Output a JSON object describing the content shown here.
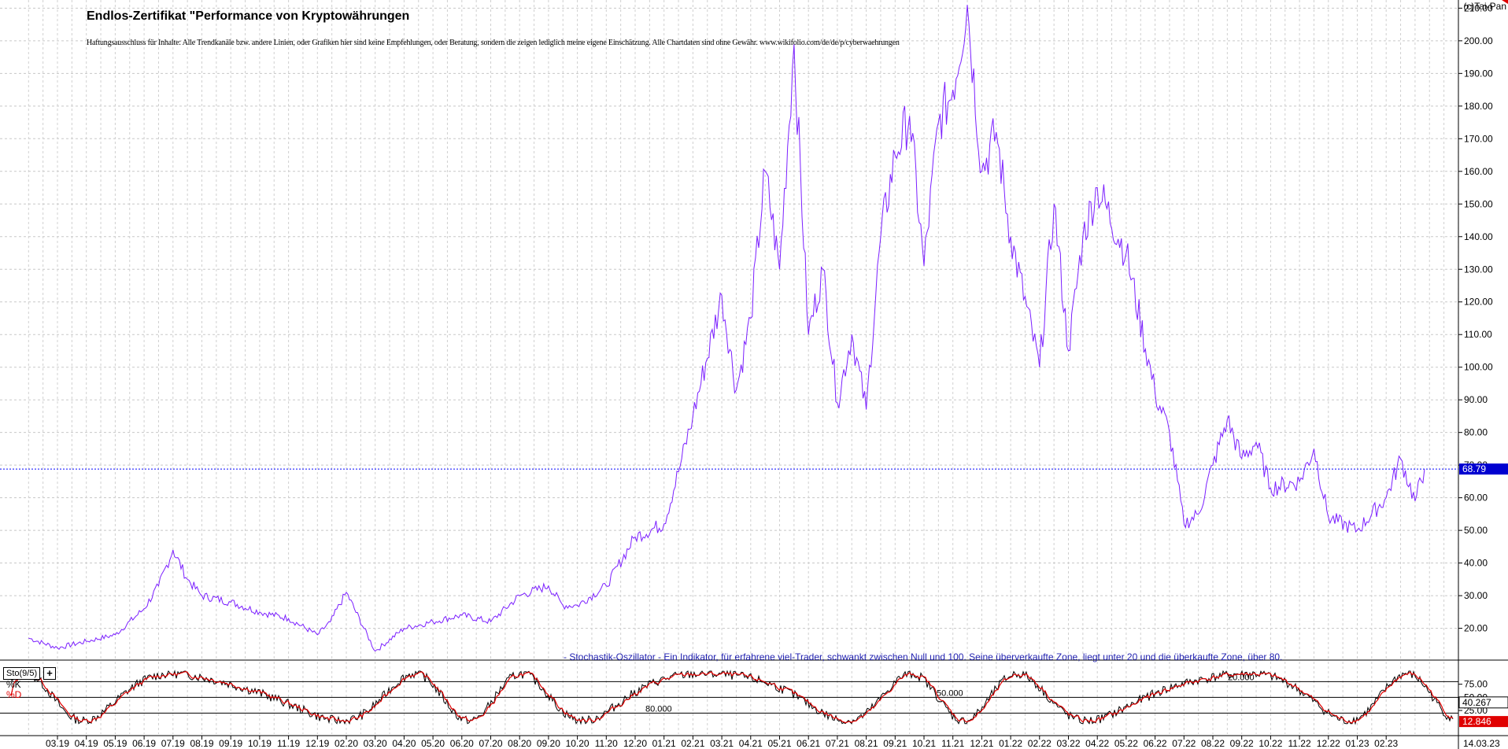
{
  "header": {
    "title": "Endlos-Zertifikat \"Performance von Kryptowährungen",
    "disclaimer": "Haftungsausschluss für Inhalte: Alle Trendkanäle bzw. andere Linien, oder Grafiken hier sind keine Empfehlungen, oder Beratung, sondern die zeigen lediglich meine eigene Einschätzung. Alle Chartdaten sind ohne Gewähr. www.wikifolio.com/de/de/p/cyberwaehrungen",
    "copyright": "(c)Tai-Pan"
  },
  "indicator": {
    "description": "- Stochastik-Oszillator - Ein Indikator, für erfahrene viel-Trader, schwankt zwischen Null und 100. Seine überverkaufte Zone, liegt unter 20 und die überkaufte Zone, über 80.",
    "box_label": "Sto(9/5)",
    "plus_label": "+",
    "k_label": "%K",
    "d_label": "%D",
    "level_labels": [
      "80.000",
      "50.000",
      "20.000"
    ]
  },
  "chart_data": [
    {
      "type": "line",
      "name": "price",
      "y_axis": {
        "ticks": [
          20,
          30,
          40,
          50,
          60,
          70,
          80,
          90,
          100,
          110,
          120,
          130,
          140,
          150,
          160,
          170,
          180,
          190,
          200,
          210
        ],
        "tick_labels": [
          "20.00",
          "30.00",
          "40.00",
          "50.00",
          "60.00",
          "70.00",
          "80.00",
          "90.00",
          "100.00",
          "110.00",
          "120.00",
          "130.00",
          "140.00",
          "150.00",
          "160.00",
          "170.00",
          "180.00",
          "190.00",
          "200.00",
          "210.00"
        ],
        "ylim": [
          10.5,
          212.5
        ]
      },
      "x_axis": {
        "tick_labels": [
          "03.19",
          "04.19",
          "05.19",
          "06.19",
          "07.19",
          "08.19",
          "09.19",
          "10.19",
          "11.19",
          "12.19",
          "02.20",
          "03.20",
          "04.20",
          "05.20",
          "06.20",
          "07.20",
          "08.20",
          "09.20",
          "10.20",
          "11.20",
          "12.20",
          "01.21",
          "02.21",
          "03.21",
          "04.21",
          "05.21",
          "06.21",
          "07.21",
          "08.21",
          "09.21",
          "10.21",
          "11.21",
          "12.21",
          "01.22",
          "02.22",
          "03.22",
          "04.22",
          "05.22",
          "06.22",
          "07.22",
          "08.22",
          "09.22",
          "10.22",
          "11.22",
          "12.22",
          "01.23",
          "02.23"
        ],
        "last_date_label": "14.03.23"
      },
      "last_value": 68.79,
      "last_value_label": "68.79",
      "current_price_line": 68.79,
      "color": "#7b1fff",
      "grid": true,
      "points": [
        [
          "02.19",
          17
        ],
        [
          "03.19",
          14
        ],
        [
          "04.19",
          16
        ],
        [
          "05.19",
          18
        ],
        [
          "06.19",
          26
        ],
        [
          "06.19",
          33
        ],
        [
          "07.19",
          44
        ],
        [
          "07.19",
          35
        ],
        [
          "08.19",
          30
        ],
        [
          "09.19",
          28
        ],
        [
          "10.19",
          25
        ],
        [
          "11.19",
          23
        ],
        [
          "12.19",
          18
        ],
        [
          "01.20",
          22
        ],
        [
          "02.20",
          31
        ],
        [
          "03.20",
          13
        ],
        [
          "04.20",
          20
        ],
        [
          "05.20",
          22
        ],
        [
          "06.20",
          24
        ],
        [
          "07.20",
          22
        ],
        [
          "08.20",
          30
        ],
        [
          "09.20",
          33
        ],
        [
          "09.20",
          27
        ],
        [
          "10.20",
          27
        ],
        [
          "11.20",
          33
        ],
        [
          "12.20",
          48
        ],
        [
          "01.21",
          52
        ],
        [
          "01.21",
          68
        ],
        [
          "02.21",
          85
        ],
        [
          "03.21",
          122
        ],
        [
          "03.21",
          93
        ],
        [
          "04.21",
          115
        ],
        [
          "04.21",
          160
        ],
        [
          "05.21",
          130
        ],
        [
          "05.21",
          199
        ],
        [
          "06.21",
          110
        ],
        [
          "06.21",
          130
        ],
        [
          "07.21",
          89
        ],
        [
          "07.21",
          110
        ],
        [
          "08.21",
          87
        ],
        [
          "08.21",
          140
        ],
        [
          "09.21",
          165
        ],
        [
          "09.21",
          177
        ],
        [
          "10.21",
          131
        ],
        [
          "10.21",
          175
        ],
        [
          "11.21",
          185
        ],
        [
          "11.21",
          211
        ],
        [
          "12.21",
          160
        ],
        [
          "12.21",
          172
        ],
        [
          "01.22",
          140
        ],
        [
          "02.22",
          100
        ],
        [
          "02.22",
          150
        ],
        [
          "03.22",
          105
        ],
        [
          "03.22",
          140
        ],
        [
          "04.22",
          155
        ],
        [
          "05.22",
          135
        ],
        [
          "06.22",
          92
        ],
        [
          "06.22",
          80
        ],
        [
          "07.22",
          52
        ],
        [
          "07.22",
          55
        ],
        [
          "08.22",
          70
        ],
        [
          "08.22",
          84
        ],
        [
          "09.22",
          72
        ],
        [
          "09.22",
          77
        ],
        [
          "10.22",
          63
        ],
        [
          "11.22",
          65
        ],
        [
          "11.22",
          75
        ],
        [
          "12.22",
          54
        ],
        [
          "01.23",
          50
        ],
        [
          "02.23",
          60
        ],
        [
          "02.23",
          72
        ],
        [
          "03.23",
          59
        ],
        [
          "03.23",
          68.79
        ]
      ]
    },
    {
      "type": "line",
      "name": "stochastic",
      "series": [
        {
          "name": "%K",
          "color": "#000000"
        },
        {
          "name": "%D",
          "color": "#e00000"
        }
      ],
      "y_axis": {
        "ticks": [
          25,
          50,
          75
        ],
        "tick_labels": [
          "25.00",
          "50.00",
          "75.00"
        ],
        "ylim": [
          -20,
          118
        ]
      },
      "levels": [
        20,
        50,
        80
      ],
      "last_k": 40.267,
      "last_k_label": "40.267",
      "last_d": 12.846,
      "last_d_label": "12.846",
      "grid": true
    }
  ]
}
